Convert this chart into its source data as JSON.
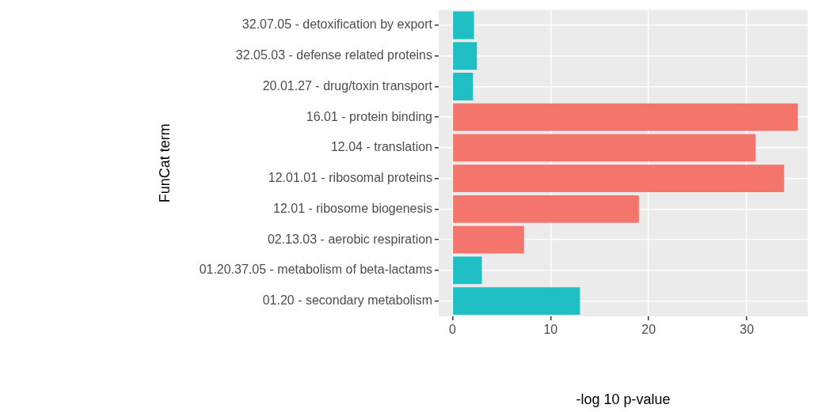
{
  "chart_data": {
    "type": "bar",
    "orientation": "horizontal",
    "xlabel": "-log 10 p-value",
    "ylabel": "FunCat term",
    "categories": [
      "32.07.05 - detoxification by export",
      "32.05.03 - defense related proteins",
      "20.01.27 - drug/toxin transport",
      "16.01 - protein binding",
      "12.04 - translation",
      "12.01.01 - ribosomal proteins",
      "12.01 - ribosome biogenesis",
      "02.13.03 - aerobic respiration",
      "01.20.37.05 - metabolism of beta-lactams",
      "01.20 - secondary metabolism"
    ],
    "values": [
      2.2,
      2.5,
      2.1,
      35.2,
      30.9,
      33.8,
      19.0,
      7.3,
      3.0,
      13.0
    ],
    "colors": [
      "#1fbfc4",
      "#1fbfc4",
      "#1fbfc4",
      "#f4756c",
      "#f4756c",
      "#f4756c",
      "#f4756c",
      "#f4756c",
      "#1fbfc4",
      "#1fbfc4"
    ],
    "xlim": [
      -1.4,
      36.2
    ],
    "xticks": [
      0,
      10,
      20,
      30
    ],
    "grid": true,
    "legend": false
  }
}
